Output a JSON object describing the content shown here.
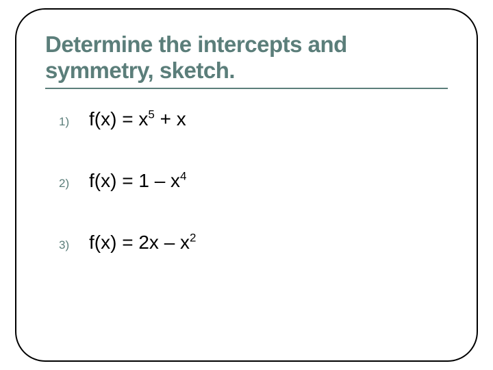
{
  "slide": {
    "title": "Determine the intercepts and symmetry, sketch.",
    "title_color": "#5b7e7a",
    "rule_color": "#5b7e7a",
    "border_color": "#000000",
    "border_radius": 44,
    "background_color": "#ffffff",
    "title_fontsize": 33,
    "items": [
      {
        "num": "1)",
        "base": "f(x) = x",
        "sup1": "5",
        "mid": " + x",
        "sup2": "",
        "tail": ""
      },
      {
        "num": "2)",
        "base": "f(x) = 1 – x",
        "sup1": "4",
        "mid": "",
        "sup2": "",
        "tail": ""
      },
      {
        "num": "3)",
        "base": "f(x) = 2x – x",
        "sup1": "2",
        "mid": "",
        "sup2": "",
        "tail": ""
      }
    ],
    "num_color": "#5b7e7a",
    "expr_color": "#000000",
    "expr_fontsize": 28,
    "num_fontsize": 17
  }
}
